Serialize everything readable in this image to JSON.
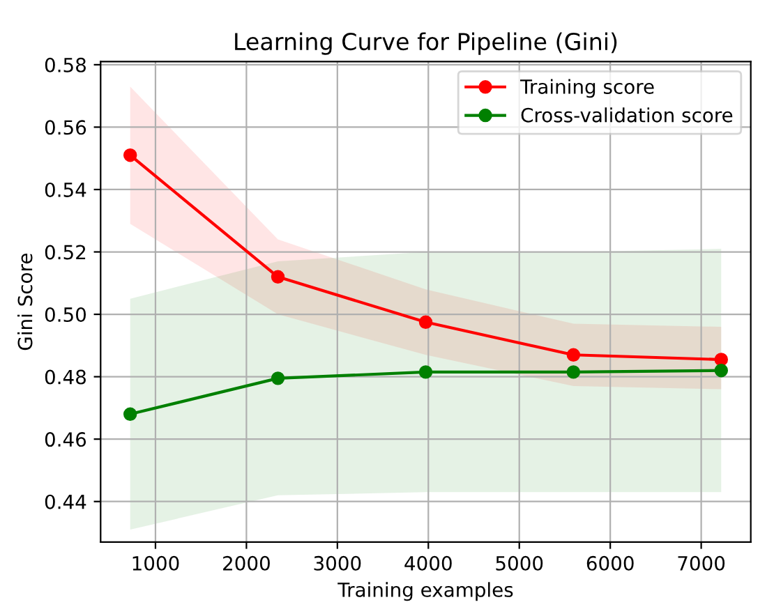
{
  "chart_data": {
    "type": "line",
    "title": "Learning Curve for Pipeline (Gini)",
    "xlabel": "Training examples",
    "ylabel": "Gini Score",
    "series": [
      {
        "name": "Training score",
        "color": "#ff0000",
        "x": [
          722,
          2346,
          3971,
          5595,
          7220
        ],
        "values": [
          0.551,
          0.512,
          0.4975,
          0.487,
          0.4855
        ],
        "lower": [
          0.529,
          0.5,
          0.487,
          0.477,
          0.476
        ],
        "upper": [
          0.573,
          0.524,
          0.508,
          0.497,
          0.496
        ]
      },
      {
        "name": "Cross-validation score",
        "color": "#008000",
        "x": [
          722,
          2346,
          3971,
          5595,
          7220
        ],
        "values": [
          0.468,
          0.4795,
          0.4815,
          0.4815,
          0.482
        ],
        "lower": [
          0.431,
          0.442,
          0.443,
          0.443,
          0.443
        ],
        "upper": [
          0.505,
          0.517,
          0.52,
          0.52,
          0.521
        ]
      }
    ],
    "xlim": [
      397,
      7545
    ],
    "ylim": [
      0.427,
      0.581
    ],
    "xticks": [
      1000,
      2000,
      3000,
      4000,
      5000,
      6000,
      7000
    ],
    "yticks": [
      {
        "value": 0.44,
        "label": "0.44"
      },
      {
        "value": 0.46,
        "label": "0.46"
      },
      {
        "value": 0.48,
        "label": "0.48"
      },
      {
        "value": 0.5,
        "label": "0.50"
      },
      {
        "value": 0.52,
        "label": "0.52"
      },
      {
        "value": 0.54,
        "label": "0.54"
      },
      {
        "value": 0.56,
        "label": "0.56"
      },
      {
        "value": 0.58,
        "label": "0.58"
      }
    ],
    "grid": true,
    "legend": "top right",
    "marker": "circle",
    "line_style": "solid"
  }
}
